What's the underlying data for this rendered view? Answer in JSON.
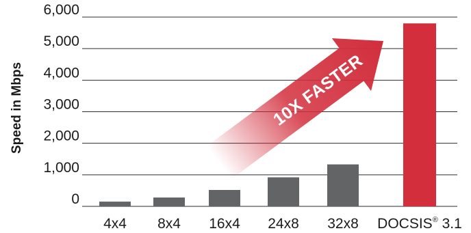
{
  "chart_data": {
    "type": "bar",
    "title": "",
    "xlabel": "",
    "ylabel": "Speed in Mbps",
    "ylim": [
      0,
      6000
    ],
    "yticks": [
      "0",
      "1,000",
      "2,000",
      "3,000",
      "4,000",
      "5,000",
      "6,000"
    ],
    "ytick_values": [
      0,
      1000,
      2000,
      3000,
      4000,
      5000,
      6000
    ],
    "grid": true,
    "categories": [
      "4x4",
      "8x4",
      "16x4",
      "24x8",
      "32x8",
      "DOCSIS® 3.1"
    ],
    "values": [
      150,
      280,
      520,
      920,
      1330,
      5800
    ],
    "colors": {
      "standard": "#636466",
      "highlight": "#d22e3c",
      "grid": "#2b2b2b",
      "text": "#1a1a1a"
    },
    "highlight_index": 5,
    "annotation": {
      "text": "10X FASTER",
      "from_category": "16x4",
      "to_category": "DOCSIS® 3.1"
    }
  }
}
